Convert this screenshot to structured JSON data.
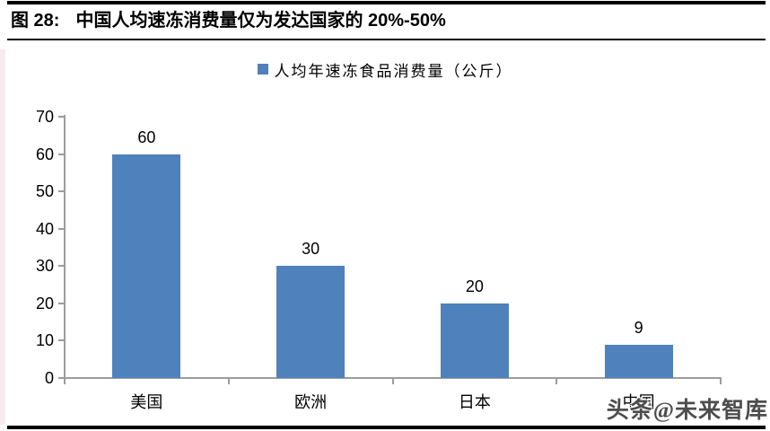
{
  "header": {
    "figure_label": "图 28:",
    "title": "中国人均速冻消费量仅为发达国家的 20%-50%"
  },
  "page": {
    "watermark": "头条@未来智库"
  },
  "colors": {
    "bar": "#4F81BD",
    "axis": "#9C9C9C",
    "rule": "#000000",
    "watermark_text": "#4D4D4D"
  },
  "chart_data": {
    "type": "bar",
    "title": "",
    "legend": "人均年速冻食品消费量（公斤）",
    "legend_position": "top-center",
    "categories": [
      "美国",
      "欧洲",
      "日本",
      "中国"
    ],
    "values": [
      60,
      30,
      20,
      9
    ],
    "data_labels": [
      "60",
      "30",
      "20",
      "9"
    ],
    "xlabel": "",
    "ylabel": "",
    "ylim": [
      0,
      70
    ],
    "yticks": [
      0,
      10,
      20,
      30,
      40,
      50,
      60,
      70
    ],
    "grid": false
  }
}
